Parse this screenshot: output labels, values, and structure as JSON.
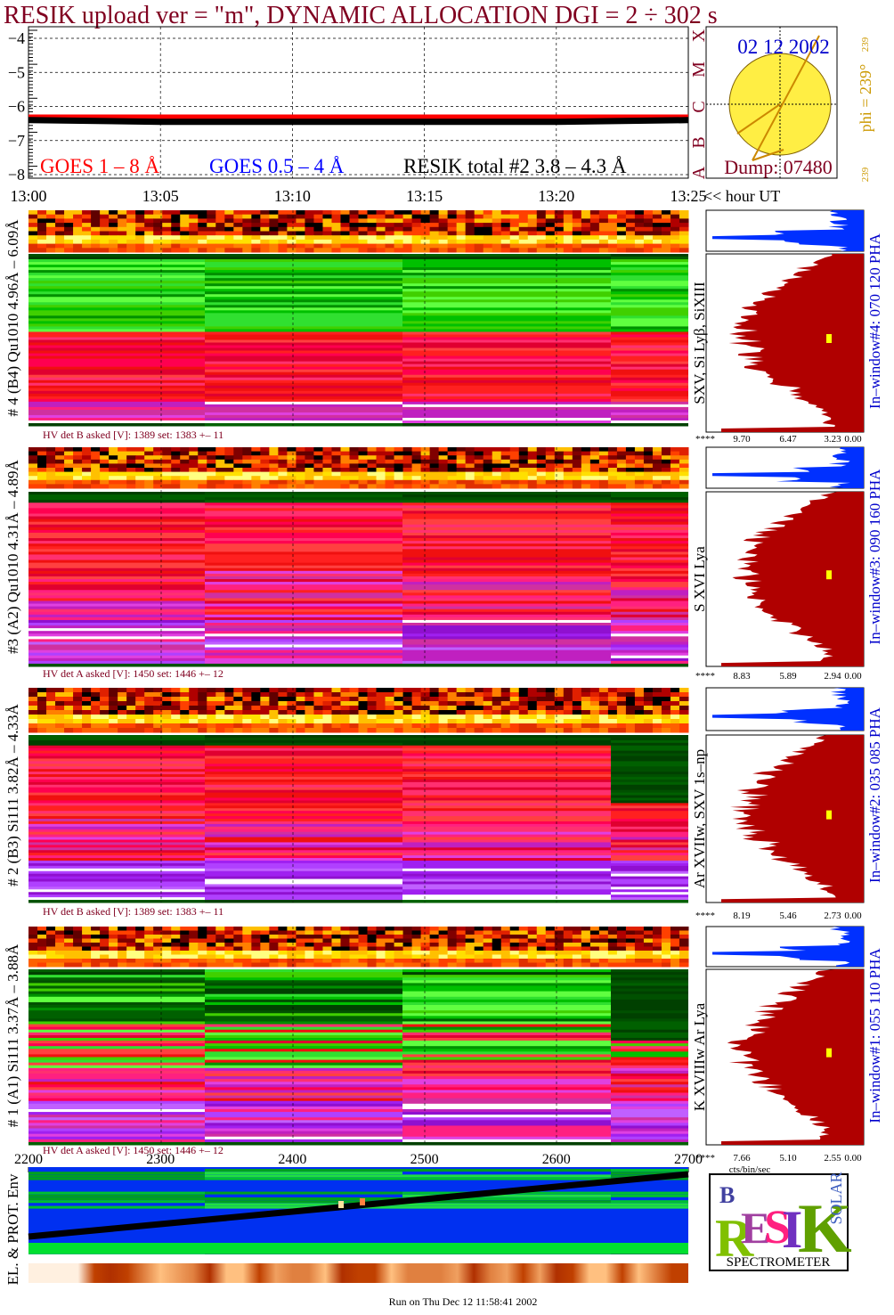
{
  "chart_data": {
    "type": "line",
    "title": "RESIK upload ver = \"m\", DYNAMIC ALLOCATION  DGI =   2 ÷ 302 s",
    "x": [
      "13:00",
      "13:05",
      "13:10",
      "13:15",
      "13:20",
      "13:25"
    ],
    "x_unit_label": "<< hour UT",
    "series": [
      {
        "name": "GOES 1 – 8 Å",
        "color": "#ff0000",
        "values": [
          -6.3,
          -6.3,
          -6.3,
          -6.3,
          -6.3,
          -6.3
        ]
      },
      {
        "name": "GOES 0.5 – 4 Å",
        "color": "#0000ff",
        "values": [
          null,
          null,
          null,
          null,
          null,
          null
        ]
      },
      {
        "name": "RESIK total #2  3.8 – 4.3 Å",
        "color": "#000000",
        "values": [
          -6.4,
          -6.45,
          -6.45,
          -6.45,
          -6.45,
          -6.4
        ]
      }
    ],
    "ylim": [
      -8,
      -4
    ],
    "yticks": [
      {
        "value": -8,
        "label": "−8"
      },
      {
        "value": -7,
        "label": "−7"
      },
      {
        "value": -6,
        "label": "−6"
      },
      {
        "value": -5,
        "label": "−5"
      },
      {
        "value": -4,
        "label": "−4"
      }
    ],
    "grid": true
  },
  "dgi_panel": {
    "date": "02 12 2002",
    "classes": [
      "X",
      "M",
      "C",
      "B",
      "A"
    ],
    "dump": "Dump: 07480",
    "phi": "phi = 239°",
    "phi_small": "239"
  },
  "panels": [
    {
      "label": "# 4 (B4) Qu1010 4.96Å – 6.09Å",
      "hv": "HV det B asked [V]:  1389 set:  1383 +–   11",
      "lines": "SXV, Si Lyβ, SiXIII",
      "window": "In–window#4:  070 120 PHA",
      "hist_ticks": [
        "****",
        "9.70",
        "6.47",
        "3.23",
        "0.00"
      ]
    },
    {
      "label": "#3 (A2) Qu1010  4.31Å – 4.89Å",
      "hv": "HV det A asked [V]:  1450 set:  1446 +–   12",
      "lines": "S XVI Lya",
      "window": "In–window#3:  090 160 PHA",
      "hist_ticks": [
        "****",
        "8.83",
        "5.89",
        "2.94",
        "0.00"
      ]
    },
    {
      "label": "# 2 (B3) Si111  3.82Å – 4.33Å",
      "hv": "HV det B asked [V]:  1389 set:  1383 +–   11",
      "lines": "Ar XVIIw,  SXV 1s–np",
      "window": "In–window#2:  035 085 PHA",
      "hist_ticks": [
        "****",
        "8.19",
        "5.46",
        "2.73",
        "0.00"
      ]
    },
    {
      "label": "# 1 (A1) Si111  3.37Å – 3.88Å",
      "hv": "HV det A asked [V]:  1450 set:  1446 +–   12",
      "lines": "K XVIIIw   Ar Lya",
      "window": "In–window#1:  055 110 PHA",
      "hist_ticks": [
        "****",
        "7.66",
        "5.10",
        "2.55",
        "0.00"
      ]
    }
  ],
  "hist_unit": "cts/bin/sec",
  "env_panel": {
    "label": "EL. & PROT. Env",
    "xticks": [
      2200,
      2300,
      2400,
      2500,
      2600,
      2700
    ],
    "xlim": [
      2200,
      2700
    ]
  },
  "logo": {
    "letters": [
      "B",
      "R",
      "E",
      "S",
      "I",
      "K",
      "SOLAR"
    ],
    "caption": "SPECTROMETER"
  },
  "footer": "Run on Thu Dec 12 11:58:41 2002"
}
